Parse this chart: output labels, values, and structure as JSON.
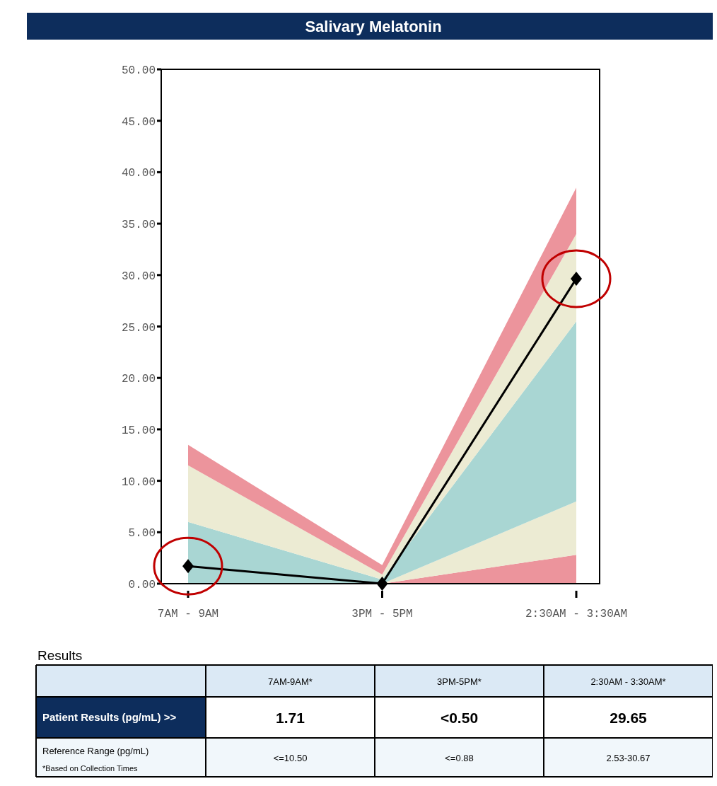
{
  "chart_data": {
    "type": "line",
    "title": "Salivary Melatonin",
    "categories": [
      "7AM - 9AM",
      "3PM - 5PM",
      "2:30AM - 3:30AM"
    ],
    "series": [
      {
        "type": "area",
        "color": "#ec949c",
        "values": [
          0,
          0,
          2.8
        ]
      },
      {
        "type": "area",
        "color": "#ecebd3",
        "values": [
          0,
          0,
          5.2
        ]
      },
      {
        "type": "area",
        "color": "#a9d6d3",
        "values": [
          6,
          0.4,
          17.5
        ]
      },
      {
        "type": "area",
        "color": "#ecebd3",
        "values": [
          5.5,
          0.5,
          8.5
        ]
      },
      {
        "type": "area",
        "color": "#ec949c",
        "values": [
          2,
          0.9,
          4.5
        ]
      },
      {
        "color": "#000000",
        "values": [
          1.71,
          0,
          29.65
        ],
        "marker": "diamond"
      }
    ],
    "stacked": true,
    "ylim": [
      0,
      50
    ],
    "yticks": [
      {
        "value": 0,
        "label": "0.00"
      },
      {
        "value": 5,
        "label": "5.00"
      },
      {
        "value": 10,
        "label": "10.00"
      },
      {
        "value": 15,
        "label": "15.00"
      },
      {
        "value": 20,
        "label": "20.00"
      },
      {
        "value": 25,
        "label": "25.00"
      },
      {
        "value": 30,
        "label": "30.00"
      },
      {
        "value": 35,
        "label": "35.00"
      },
      {
        "value": 40,
        "label": "40.00"
      },
      {
        "value": 45,
        "label": "45.00"
      },
      {
        "value": 50,
        "label": "50.00"
      }
    ],
    "grid": false,
    "annotations": [
      "Results",
      "7AM-9AM*",
      "3PM-5PM*",
      "2:30AM - 3:30AM*",
      "Patient Results (pg/mL) >>",
      "Reference Range (pg/mL)",
      "*Based on Collection Times",
      "<=10.50",
      "<=0.88",
      "2.53-30.67",
      "1.71",
      "<0.50",
      "29.65"
    ]
  }
}
